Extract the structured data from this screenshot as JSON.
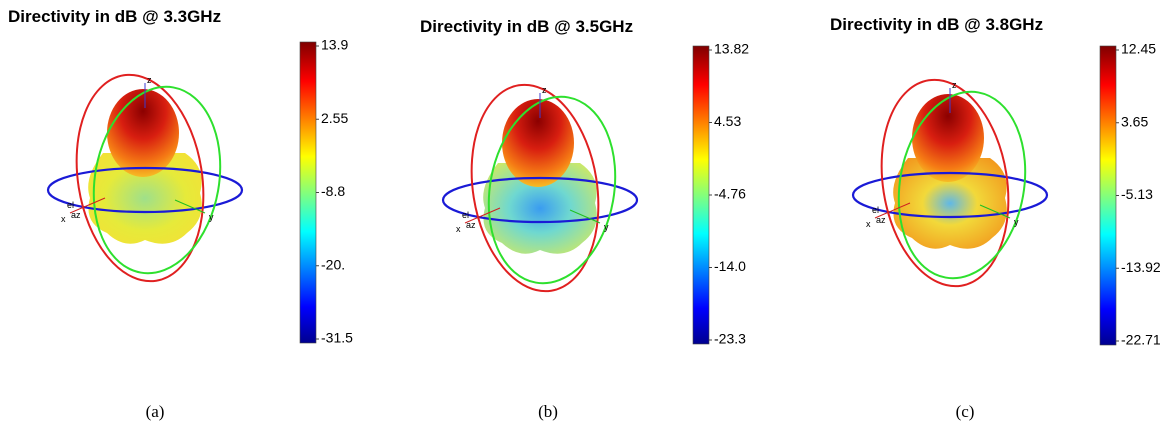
{
  "panels": [
    {
      "title": "Directivity in dB @ 3.3GHz",
      "colorbar_ticks": [
        "13.9",
        "2.55",
        "-8.8",
        "-20.",
        "-31.5"
      ],
      "axis_labels": {
        "z": "z",
        "x": "x",
        "y": "y",
        "el": "el",
        "az": "az"
      },
      "caption": "(a)"
    },
    {
      "title": "Directivity in dB @ 3.5GHz",
      "colorbar_ticks": [
        "13.82",
        "4.53",
        "-4.76",
        "-14.0",
        "-23.3"
      ],
      "axis_labels": {
        "z": "z",
        "x": "x",
        "y": "y",
        "el": "el",
        "az": "az"
      },
      "caption": "(b)"
    },
    {
      "title": "Directivity in dB @ 3.8GHz",
      "colorbar_ticks": [
        "12.45",
        "3.65",
        "-5.13",
        "-13.92",
        "-22.71"
      ],
      "axis_labels": {
        "z": "z",
        "x": "x",
        "y": "y",
        "el": "el",
        "az": "az"
      },
      "caption": "(c)"
    }
  ]
}
